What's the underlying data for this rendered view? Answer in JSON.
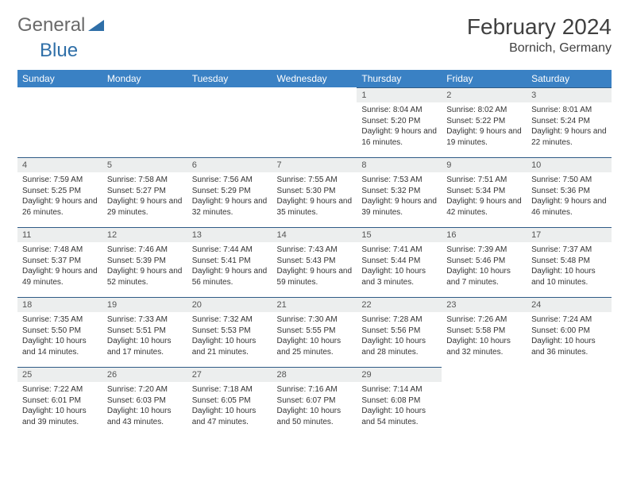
{
  "brand": {
    "part1": "General",
    "part2": "Blue",
    "color1": "#6a6a6a",
    "color2": "#2f6fa8"
  },
  "title": "February 2024",
  "location": "Bornich, Germany",
  "colors": {
    "header_bg": "#3a81c4",
    "header_text": "#ffffff",
    "daynum_bg": "#eceeee",
    "daynum_border": "#2f5b86",
    "body_text": "#333333"
  },
  "weekdays": [
    "Sunday",
    "Monday",
    "Tuesday",
    "Wednesday",
    "Thursday",
    "Friday",
    "Saturday"
  ],
  "first_weekday_index": 4,
  "days": [
    {
      "n": 1,
      "sunrise": "8:04 AM",
      "sunset": "5:20 PM",
      "daylight": "9 hours and 16 minutes."
    },
    {
      "n": 2,
      "sunrise": "8:02 AM",
      "sunset": "5:22 PM",
      "daylight": "9 hours and 19 minutes."
    },
    {
      "n": 3,
      "sunrise": "8:01 AM",
      "sunset": "5:24 PM",
      "daylight": "9 hours and 22 minutes."
    },
    {
      "n": 4,
      "sunrise": "7:59 AM",
      "sunset": "5:25 PM",
      "daylight": "9 hours and 26 minutes."
    },
    {
      "n": 5,
      "sunrise": "7:58 AM",
      "sunset": "5:27 PM",
      "daylight": "9 hours and 29 minutes."
    },
    {
      "n": 6,
      "sunrise": "7:56 AM",
      "sunset": "5:29 PM",
      "daylight": "9 hours and 32 minutes."
    },
    {
      "n": 7,
      "sunrise": "7:55 AM",
      "sunset": "5:30 PM",
      "daylight": "9 hours and 35 minutes."
    },
    {
      "n": 8,
      "sunrise": "7:53 AM",
      "sunset": "5:32 PM",
      "daylight": "9 hours and 39 minutes."
    },
    {
      "n": 9,
      "sunrise": "7:51 AM",
      "sunset": "5:34 PM",
      "daylight": "9 hours and 42 minutes."
    },
    {
      "n": 10,
      "sunrise": "7:50 AM",
      "sunset": "5:36 PM",
      "daylight": "9 hours and 46 minutes."
    },
    {
      "n": 11,
      "sunrise": "7:48 AM",
      "sunset": "5:37 PM",
      "daylight": "9 hours and 49 minutes."
    },
    {
      "n": 12,
      "sunrise": "7:46 AM",
      "sunset": "5:39 PM",
      "daylight": "9 hours and 52 minutes."
    },
    {
      "n": 13,
      "sunrise": "7:44 AM",
      "sunset": "5:41 PM",
      "daylight": "9 hours and 56 minutes."
    },
    {
      "n": 14,
      "sunrise": "7:43 AM",
      "sunset": "5:43 PM",
      "daylight": "9 hours and 59 minutes."
    },
    {
      "n": 15,
      "sunrise": "7:41 AM",
      "sunset": "5:44 PM",
      "daylight": "10 hours and 3 minutes."
    },
    {
      "n": 16,
      "sunrise": "7:39 AM",
      "sunset": "5:46 PM",
      "daylight": "10 hours and 7 minutes."
    },
    {
      "n": 17,
      "sunrise": "7:37 AM",
      "sunset": "5:48 PM",
      "daylight": "10 hours and 10 minutes."
    },
    {
      "n": 18,
      "sunrise": "7:35 AM",
      "sunset": "5:50 PM",
      "daylight": "10 hours and 14 minutes."
    },
    {
      "n": 19,
      "sunrise": "7:33 AM",
      "sunset": "5:51 PM",
      "daylight": "10 hours and 17 minutes."
    },
    {
      "n": 20,
      "sunrise": "7:32 AM",
      "sunset": "5:53 PM",
      "daylight": "10 hours and 21 minutes."
    },
    {
      "n": 21,
      "sunrise": "7:30 AM",
      "sunset": "5:55 PM",
      "daylight": "10 hours and 25 minutes."
    },
    {
      "n": 22,
      "sunrise": "7:28 AM",
      "sunset": "5:56 PM",
      "daylight": "10 hours and 28 minutes."
    },
    {
      "n": 23,
      "sunrise": "7:26 AM",
      "sunset": "5:58 PM",
      "daylight": "10 hours and 32 minutes."
    },
    {
      "n": 24,
      "sunrise": "7:24 AM",
      "sunset": "6:00 PM",
      "daylight": "10 hours and 36 minutes."
    },
    {
      "n": 25,
      "sunrise": "7:22 AM",
      "sunset": "6:01 PM",
      "daylight": "10 hours and 39 minutes."
    },
    {
      "n": 26,
      "sunrise": "7:20 AM",
      "sunset": "6:03 PM",
      "daylight": "10 hours and 43 minutes."
    },
    {
      "n": 27,
      "sunrise": "7:18 AM",
      "sunset": "6:05 PM",
      "daylight": "10 hours and 47 minutes."
    },
    {
      "n": 28,
      "sunrise": "7:16 AM",
      "sunset": "6:07 PM",
      "daylight": "10 hours and 50 minutes."
    },
    {
      "n": 29,
      "sunrise": "7:14 AM",
      "sunset": "6:08 PM",
      "daylight": "10 hours and 54 minutes."
    }
  ],
  "labels": {
    "sunrise": "Sunrise:",
    "sunset": "Sunset:",
    "daylight": "Daylight:"
  }
}
